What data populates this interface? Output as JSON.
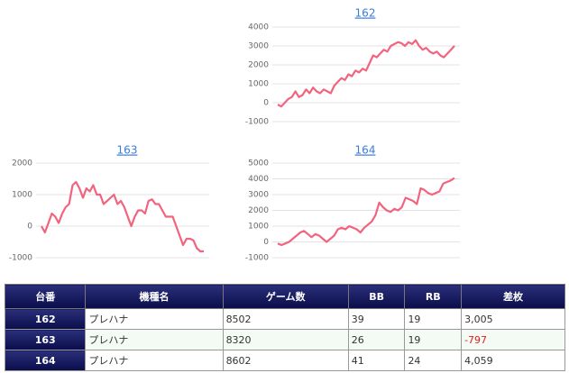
{
  "chart_data": [
    {
      "type": "line",
      "title": "162",
      "color": "#f2637e",
      "ylim": [
        -1000,
        4000
      ],
      "yticks": [
        -1000,
        0,
        1000,
        2000,
        3000,
        4000
      ],
      "grid": true,
      "values": [
        -100,
        -200,
        0,
        200,
        300,
        600,
        300,
        400,
        700,
        500,
        800,
        600,
        500,
        700,
        600,
        500,
        900,
        1100,
        1300,
        1200,
        1500,
        1400,
        1700,
        1600,
        1800,
        1700,
        2100,
        2500,
        2400,
        2600,
        2800,
        2700,
        3000,
        3100,
        3200,
        3150,
        3000,
        3200,
        3100,
        3300,
        3000,
        2800,
        2900,
        2700,
        2600,
        2700,
        2500,
        2400,
        2600,
        2800,
        3005
      ]
    },
    {
      "type": "line",
      "title": "163",
      "color": "#f2637e",
      "ylim": [
        -1000,
        2000
      ],
      "yticks": [
        -1000,
        0,
        1000,
        2000
      ],
      "grid": true,
      "values": [
        0,
        -200,
        100,
        400,
        300,
        100,
        400,
        600,
        700,
        1300,
        1400,
        1200,
        900,
        1200,
        1100,
        1300,
        1000,
        1000,
        700,
        800,
        900,
        1000,
        700,
        800,
        600,
        300,
        0,
        300,
        500,
        500,
        400,
        800,
        850,
        700,
        700,
        500,
        300,
        300,
        300,
        0,
        -300,
        -600,
        -400,
        -400,
        -450,
        -700,
        -800,
        -797
      ]
    },
    {
      "type": "line",
      "title": "164",
      "color": "#f2637e",
      "ylim": [
        -1000,
        5000
      ],
      "yticks": [
        -1000,
        0,
        1000,
        2000,
        3000,
        4000,
        5000
      ],
      "grid": true,
      "values": [
        -100,
        -200,
        -100,
        0,
        200,
        400,
        600,
        700,
        500,
        300,
        500,
        400,
        200,
        0,
        200,
        400,
        800,
        900,
        800,
        1000,
        900,
        800,
        600,
        900,
        1100,
        1300,
        1700,
        2500,
        2200,
        2000,
        1900,
        2100,
        2000,
        2200,
        2800,
        2700,
        2600,
        2400,
        3400,
        3300,
        3100,
        3000,
        3100,
        3200,
        3700,
        3800,
        3900,
        4059
      ]
    }
  ],
  "table": {
    "header": [
      "台番",
      "機種名",
      "ゲーム数",
      "BB",
      "RB",
      "差枚"
    ],
    "rows": [
      [
        "162",
        "プレハナ",
        "8502",
        "39",
        "19",
        "3,005"
      ],
      [
        "163",
        "プレハナ",
        "8320",
        "26",
        "19",
        "-797"
      ],
      [
        "164",
        "プレハナ",
        "8602",
        "41",
        "24",
        "4,059"
      ]
    ]
  }
}
